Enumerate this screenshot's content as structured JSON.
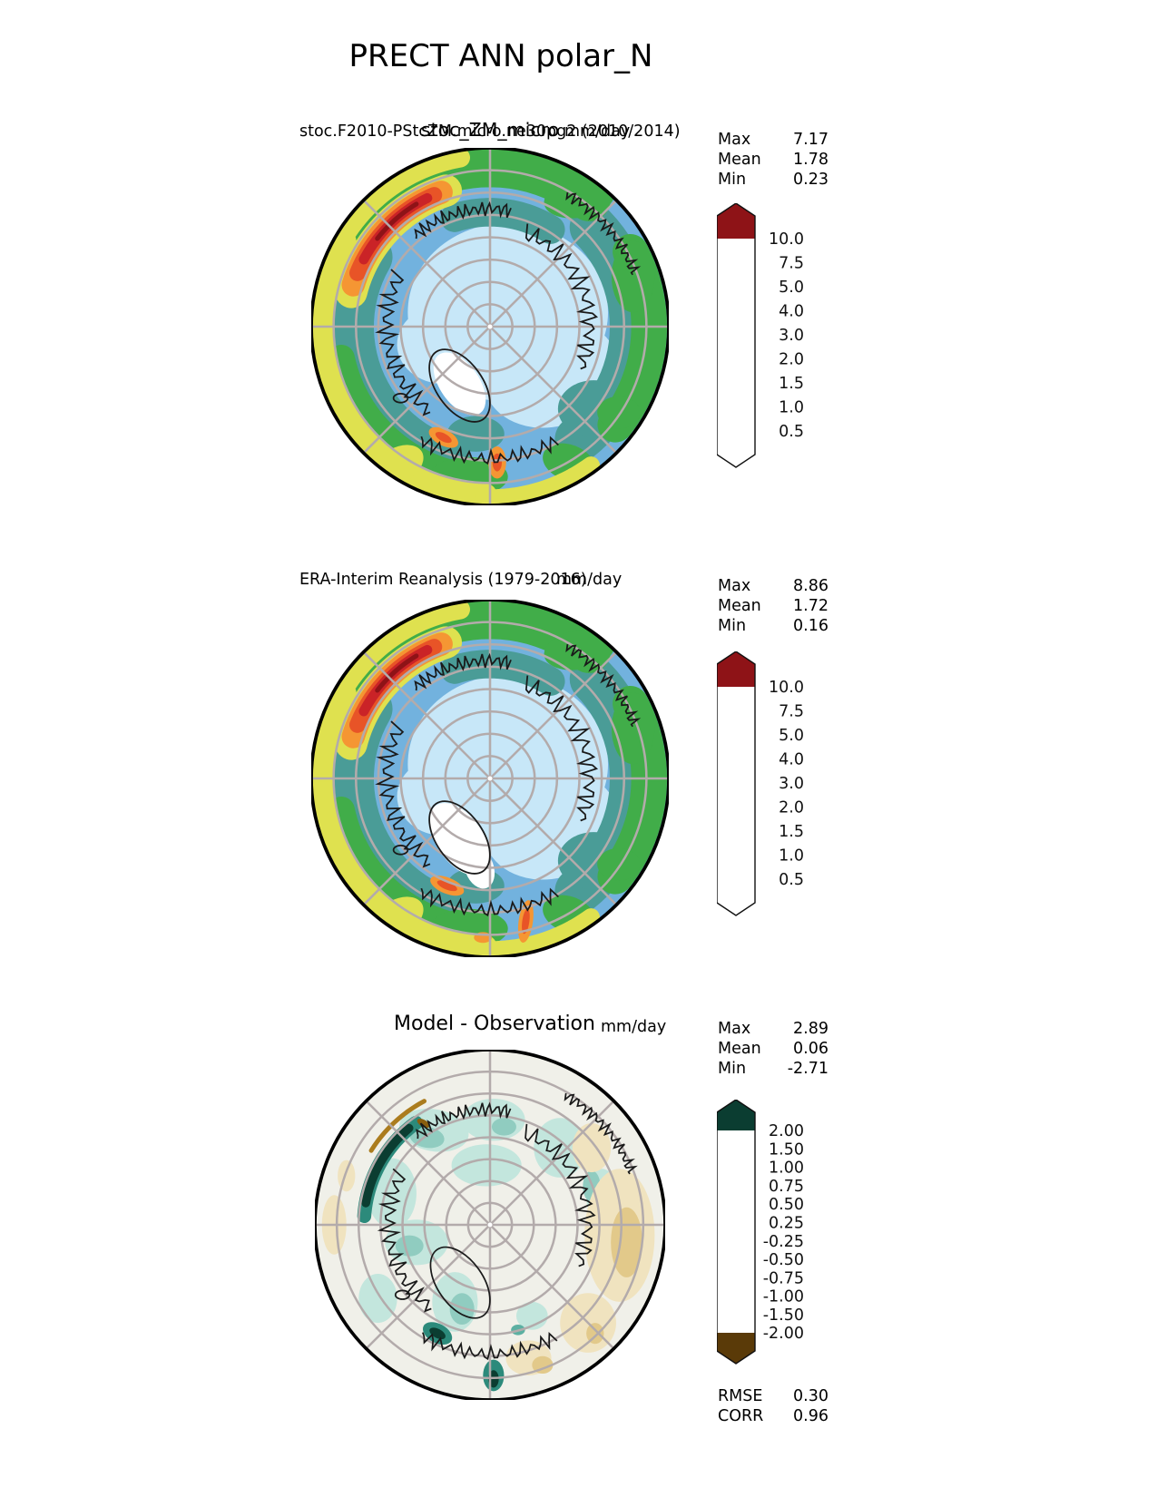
{
  "page_title": "PRECT ANN polar_N",
  "map_style": {
    "graticule": "#b3abab",
    "coastline": "#1a1a1a",
    "outline": "#000000",
    "pole_dot": "#ffffff"
  },
  "panels": [
    {
      "name": "model",
      "subtitle_left": "stoc.F2010-PStcZM.micro.ne30pg2 (2010/2014)",
      "title_center": "stoc_ZM_micro",
      "units": "mm/day",
      "stats": [
        {
          "label": "Max",
          "value": "7.17"
        },
        {
          "label": "Mean",
          "value": "1.78"
        },
        {
          "label": "Min",
          "value": "0.23"
        }
      ],
      "colorbar": {
        "ticks": [
          "10.0",
          "7.5",
          "5.0",
          "4.0",
          "3.0",
          "2.0",
          "1.5",
          "1.0",
          "0.5"
        ],
        "over": "#8e1317",
        "cells": [
          "#ca2327",
          "#e85427",
          "#f59633",
          "#dfe14f",
          "#41ad49",
          "#4a9c97",
          "#72b2de",
          "#c7e7f8"
        ],
        "under": "#ffffff"
      }
    },
    {
      "name": "observation",
      "subtitle_left": "ERA-Interim Reanalysis (1979-2016)",
      "title_center": "",
      "units": "mm/day",
      "stats": [
        {
          "label": "Max",
          "value": "8.86"
        },
        {
          "label": "Mean",
          "value": "1.72"
        },
        {
          "label": "Min",
          "value": "0.16"
        }
      ],
      "colorbar": {
        "ticks": [
          "10.0",
          "7.5",
          "5.0",
          "4.0",
          "3.0",
          "2.0",
          "1.5",
          "1.0",
          "0.5"
        ],
        "over": "#8e1317",
        "cells": [
          "#ca2327",
          "#e85427",
          "#f59633",
          "#dfe14f",
          "#41ad49",
          "#4a9c97",
          "#72b2de",
          "#c7e7f8"
        ],
        "under": "#ffffff"
      }
    },
    {
      "name": "difference",
      "subtitle_left": "",
      "title_center": "Model - Observation",
      "units": "mm/day",
      "stats": [
        {
          "label": "Max",
          "value": "2.89"
        },
        {
          "label": "Mean",
          "value": "0.06"
        },
        {
          "label": "Min",
          "value": "-2.71"
        }
      ],
      "colorbar": {
        "ticks": [
          "2.00",
          "1.50",
          "1.00",
          "0.75",
          "0.50",
          "0.25",
          "-0.25",
          "-0.50",
          "-0.75",
          "-1.00",
          "-1.50",
          "-2.00"
        ],
        "over": "#0b3d31",
        "cells": [
          "#0f5c4b",
          "#2c8a7b",
          "#5cb0a2",
          "#90ccc0",
          "#c3e6dd",
          "#f0f0e9",
          "#f0e3bf",
          "#e2c98a",
          "#cda350",
          "#ab7c1e",
          "#8a5e0e"
        ],
        "under": "#5a3a08"
      },
      "metrics": [
        {
          "label": "RMSE",
          "value": "0.30"
        },
        {
          "label": "CORR",
          "value": "0.96"
        }
      ]
    }
  ],
  "chart_data": [
    {
      "type": "heatmap",
      "projection": "polar stereographic (north)",
      "title": "stoc_ZM_micro / stoc.F2010-PStcZM.micro.ne30pg2 (2010/2014)",
      "variable": "PRECT ANN polar_N",
      "units": "mm/day",
      "contour_levels": [
        0.5,
        1.0,
        1.5,
        2.0,
        3.0,
        4.0,
        5.0,
        7.5,
        10.0
      ],
      "stats": {
        "max": 7.17,
        "mean": 1.78,
        "min": 0.23
      },
      "legend_position": "right"
    },
    {
      "type": "heatmap",
      "projection": "polar stereographic (north)",
      "title": "ERA-Interim Reanalysis (1979-2016)",
      "variable": "PRECT ANN polar_N",
      "units": "mm/day",
      "contour_levels": [
        0.5,
        1.0,
        1.5,
        2.0,
        3.0,
        4.0,
        5.0,
        7.5,
        10.0
      ],
      "stats": {
        "max": 8.86,
        "mean": 1.72,
        "min": 0.16
      },
      "legend_position": "right"
    },
    {
      "type": "heatmap",
      "projection": "polar stereographic (north)",
      "title": "Model - Observation",
      "variable": "PRECT ANN polar_N",
      "units": "mm/day",
      "contour_levels": [
        -2.0,
        -1.5,
        -1.0,
        -0.75,
        -0.5,
        -0.25,
        0.25,
        0.5,
        0.75,
        1.0,
        1.5,
        2.0
      ],
      "stats": {
        "max": 2.89,
        "mean": 0.06,
        "min": -2.71,
        "rmse": 0.3,
        "corr": 0.96
      },
      "legend_position": "right"
    }
  ]
}
